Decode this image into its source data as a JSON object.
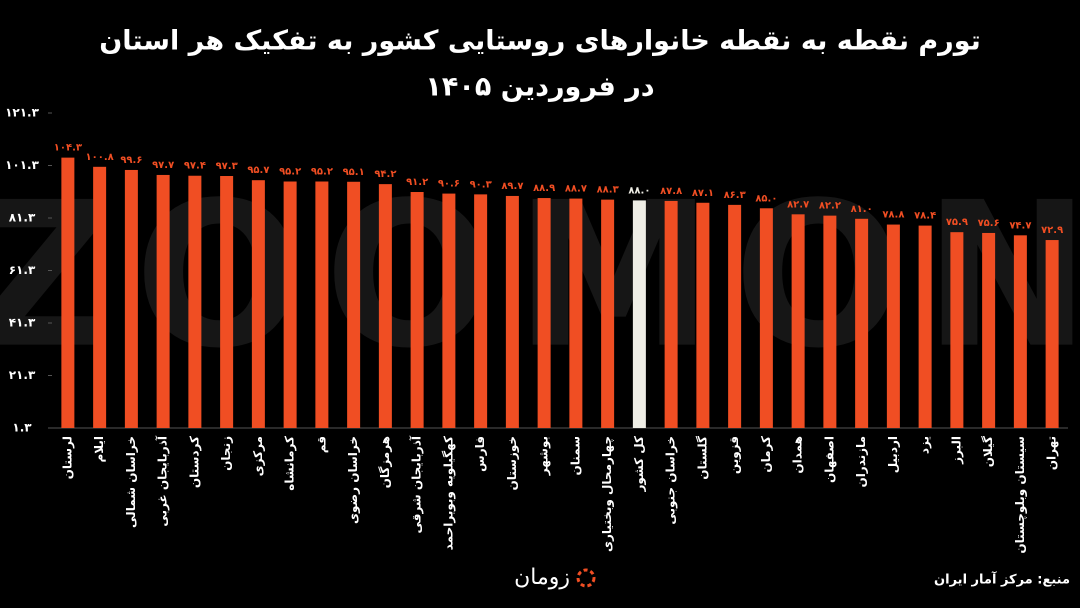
{
  "chart_data": {
    "type": "bar",
    "title": "تورم نقطه به نقطه خانوارهای روستایی کشور به تفکیک هر استان",
    "subtitle": "در فروردین ۱۴۰۵",
    "source": "منبع: مرکز آمار ایران",
    "logo": "زومان",
    "watermark": "ZOOMON",
    "categories": [
      "لرستان",
      "ایلام",
      "خراسان شمالی",
      "آذربایجان غربی",
      "کردستان",
      "زنجان",
      "مرکزی",
      "کرمانشاه",
      "قم",
      "خراسان رضوی",
      "هرمزگان",
      "آذربایجان شرقی",
      "کهگیلویه وبویراحمد",
      "فارس",
      "خوزستان",
      "بوشهر",
      "سمنان",
      "چهارمحال وبختیاری",
      "کل کشور",
      "خراسان جنوبی",
      "گلستان",
      "قزوین",
      "کرمان",
      "همدان",
      "اصفهان",
      "مازندران",
      "اردبیل",
      "یزد",
      "البرز",
      "گیلان",
      "سیستان وبلوچستان",
      "تهران"
    ],
    "values": [
      104.3,
      100.8,
      99.6,
      97.7,
      97.4,
      97.3,
      95.7,
      95.2,
      95.2,
      95.1,
      94.2,
      91.2,
      90.6,
      90.3,
      89.7,
      88.9,
      88.7,
      88.3,
      88.0,
      87.8,
      87.1,
      86.3,
      85.0,
      82.7,
      82.2,
      81.0,
      78.8,
      78.4,
      75.9,
      75.6,
      74.7,
      72.9
    ],
    "value_labels": [
      "۱۰۴.۳",
      "۱۰۰.۸",
      "۹۹.۶",
      "۹۷.۷",
      "۹۷.۴",
      "۹۷.۳",
      "۹۵.۷",
      "۹۵.۲",
      "۹۵.۲",
      "۹۵.۱",
      "۹۴.۲",
      "۹۱.۲",
      "۹۰.۶",
      "۹۰.۳",
      "۸۹.۷",
      "۸۸.۹",
      "۸۸.۷",
      "۸۸.۳",
      "۸۸.۰",
      "۸۷.۸",
      "۸۷.۱",
      "۸۶.۳",
      "۸۵.۰",
      "۸۲.۷",
      "۸۲.۲",
      "۸۱.۰",
      "۷۸.۸",
      "۷۸.۴",
      "۷۵.۹",
      "۷۵.۶",
      "۷۴.۷",
      "۷۲.۹"
    ],
    "colors": [
      "#f04e23",
      "#f04e23",
      "#f04e23",
      "#f04e23",
      "#f04e23",
      "#f04e23",
      "#f04e23",
      "#f04e23",
      "#f04e23",
      "#f04e23",
      "#f04e23",
      "#f04e23",
      "#f04e23",
      "#f04e23",
      "#f04e23",
      "#f04e23",
      "#f04e23",
      "#f04e23",
      "#efeee6",
      "#f04e23",
      "#f04e23",
      "#f04e23",
      "#f04e23",
      "#f04e23",
      "#f04e23",
      "#f04e23",
      "#f04e23",
      "#f04e23",
      "#f04e23",
      "#f04e23",
      "#f04e23",
      "#f04e23"
    ],
    "ylim": [
      1.3,
      121.3
    ],
    "yticks": [
      {
        "value": 1.3,
        "label": "۱.۳"
      },
      {
        "value": 21.3,
        "label": "۲۱.۳"
      },
      {
        "value": 41.3,
        "label": "۴۱.۳"
      },
      {
        "value": 61.3,
        "label": "۶۱.۳"
      },
      {
        "value": 81.3,
        "label": "۸۱.۳"
      },
      {
        "value": 101.3,
        "label": "۱۰۱.۳"
      },
      {
        "value": 121.3,
        "label": "۱۲۱.۳"
      }
    ],
    "grid": false
  }
}
